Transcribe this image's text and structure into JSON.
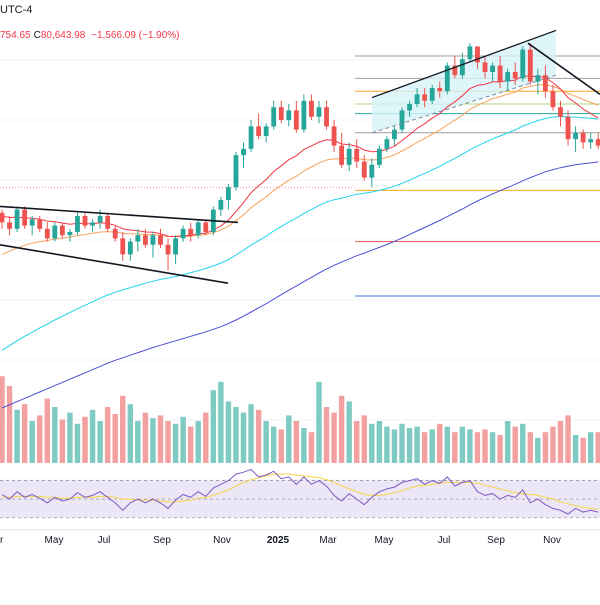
{
  "header": {
    "timezone": "UTC-4",
    "ohlc_low_fragment": "754.65",
    "close_label": "C",
    "close_value": "80,643.98",
    "change": "−1,566.09 (−1.90%)"
  },
  "colors": {
    "up": "#26a69a",
    "down": "#ef5350",
    "up_volume": "#7fcbc3",
    "down_volume": "#f3a0a0",
    "ema_fast": "#f23645",
    "ema_mid": "#f7a35c",
    "ema_slow": "#22d3ee",
    "ema_long": "#4b4fd6",
    "rsi": "#7e57c2",
    "rsi_ma": "#f5d547",
    "rsi_band": "#ece7f6",
    "trendline": "#131722",
    "grid": "#f0f3fa",
    "text": "#131722"
  },
  "chart_data": {
    "type": "candlestick",
    "interval": "weekly",
    "x_ticks": [
      "r",
      "May",
      "Jul",
      "Sep",
      "Nov",
      "2025",
      "Mar",
      "May",
      "Jul",
      "Sep",
      "Nov"
    ],
    "ohlc": [
      [
        71,
        72,
        66,
        68
      ],
      [
        68,
        70,
        64,
        66
      ],
      [
        66,
        73,
        65,
        72
      ],
      [
        72,
        73,
        66,
        67
      ],
      [
        67,
        70,
        64,
        69
      ],
      [
        69,
        70,
        65,
        66
      ],
      [
        66,
        68,
        62,
        63
      ],
      [
        63,
        68,
        62,
        67
      ],
      [
        67,
        68,
        63,
        64
      ],
      [
        64,
        66,
        62,
        65
      ],
      [
        65,
        71,
        64,
        70
      ],
      [
        70,
        71,
        66,
        67
      ],
      [
        67,
        69,
        65,
        68
      ],
      [
        68,
        72,
        66,
        70
      ],
      [
        70,
        71,
        65,
        66
      ],
      [
        66,
        67,
        62,
        63
      ],
      [
        63,
        65,
        56,
        58
      ],
      [
        58,
        63,
        56,
        62
      ],
      [
        62,
        66,
        59,
        64
      ],
      [
        64,
        66,
        60,
        61
      ],
      [
        61,
        65,
        57,
        64
      ],
      [
        64,
        66,
        60,
        61
      ],
      [
        61,
        63,
        53,
        58
      ],
      [
        58,
        64,
        55,
        63
      ],
      [
        63,
        67,
        62,
        66
      ],
      [
        66,
        68,
        62,
        64
      ],
      [
        64,
        69,
        63,
        68
      ],
      [
        68,
        69,
        64,
        65
      ],
      [
        65,
        73,
        64,
        72
      ],
      [
        72,
        76,
        70,
        75
      ],
      [
        75,
        80,
        72,
        79
      ],
      [
        79,
        90,
        78,
        89
      ],
      [
        89,
        93,
        85,
        91
      ],
      [
        91,
        100,
        90,
        98
      ],
      [
        98,
        102,
        94,
        95
      ],
      [
        95,
        99,
        93,
        98
      ],
      [
        98,
        106,
        97,
        104
      ],
      [
        104,
        106,
        99,
        100
      ],
      [
        100,
        105,
        98,
        103
      ],
      [
        103,
        106,
        96,
        97
      ],
      [
        97,
        108,
        96,
        106
      ],
      [
        106,
        108,
        100,
        101
      ],
      [
        101,
        106,
        99,
        104
      ],
      [
        104,
        106,
        97,
        98
      ],
      [
        98,
        100,
        90,
        92
      ],
      [
        92,
        96,
        85,
        86
      ],
      [
        86,
        93,
        84,
        91
      ],
      [
        91,
        94,
        85,
        87
      ],
      [
        87,
        89,
        81,
        82
      ],
      [
        82,
        88,
        79,
        86
      ],
      [
        86,
        92,
        85,
        91
      ],
      [
        91,
        95,
        90,
        94
      ],
      [
        94,
        98,
        92,
        97
      ],
      [
        97,
        104,
        96,
        103
      ],
      [
        103,
        106,
        101,
        105
      ],
      [
        105,
        110,
        104,
        108
      ],
      [
        108,
        110,
        104,
        106
      ],
      [
        106,
        111,
        105,
        110
      ],
      [
        110,
        112,
        107,
        109
      ],
      [
        109,
        118,
        108,
        117
      ],
      [
        117,
        120,
        113,
        114
      ],
      [
        114,
        121,
        113,
        119
      ],
      [
        119,
        124,
        118,
        123
      ],
      [
        123,
        123,
        116,
        118
      ],
      [
        118,
        120,
        113,
        115
      ],
      [
        115,
        118,
        112,
        117
      ],
      [
        117,
        120,
        110,
        112
      ],
      [
        112,
        116,
        109,
        115
      ],
      [
        115,
        118,
        111,
        113
      ],
      [
        113,
        123,
        112,
        122
      ],
      [
        122,
        124,
        111,
        112
      ],
      [
        112,
        116,
        108,
        114
      ],
      [
        114,
        117,
        107,
        109
      ],
      [
        109,
        111,
        103,
        104
      ],
      [
        104,
        106,
        98,
        101
      ],
      [
        101,
        103,
        92,
        94
      ],
      [
        94,
        98,
        90,
        96
      ],
      [
        96,
        97,
        91,
        93
      ],
      [
        93,
        96,
        91,
        94
      ],
      [
        94,
        96,
        91,
        92
      ]
    ],
    "volume": [
      62,
      55,
      38,
      42,
      30,
      34,
      46,
      40,
      31,
      36,
      28,
      33,
      38,
      30,
      40,
      35,
      48,
      42,
      30,
      36,
      32,
      34,
      30,
      28,
      33,
      26,
      30,
      36,
      52,
      58,
      44,
      40,
      36,
      42,
      38,
      30,
      26,
      24,
      34,
      30,
      25,
      22,
      58,
      40,
      36,
      48,
      44,
      30,
      34,
      28,
      30,
      26,
      24,
      28,
      25,
      26,
      22,
      24,
      28,
      26,
      22,
      26,
      24,
      22,
      24,
      22,
      20,
      30,
      26,
      28,
      22,
      18,
      22,
      26,
      30,
      34,
      20,
      18,
      22,
      22
    ],
    "ema_fast": [
      70,
      69.5,
      69.7,
      69.4,
      69.3,
      69.0,
      68.4,
      68.2,
      67.8,
      67.4,
      67.7,
      67.6,
      67.6,
      67.9,
      67.7,
      67.1,
      66.0,
      65.6,
      65.4,
      65.0,
      64.9,
      64.5,
      63.7,
      63.6,
      63.9,
      63.9,
      64.5,
      64.6,
      65.6,
      66.9,
      68.7,
      71.4,
      74.2,
      77.3,
      79.4,
      81.4,
      83.9,
      85.7,
      87.6,
      88.8,
      90.8,
      91.9,
      93.1,
      93.8,
      93.6,
      92.5,
      92.3,
      91.8,
      90.6,
      90.1,
      90.2,
      90.8,
      91.8,
      93.6,
      95.4,
      97.4,
      98.8,
      100.6,
      102.0,
      104.1,
      105.7,
      107.6,
      109.8,
      110.8,
      111.2,
      111.9,
      111.9,
      112.3,
      112.4,
      113.8,
      113.6,
      113.7,
      113.2,
      111.7,
      109.7,
      107.0,
      105.3,
      103.4,
      102.0,
      100.6
    ],
    "ema_mid": [
      58,
      59,
      60,
      60.8,
      61.5,
      62,
      62.3,
      62.8,
      63.1,
      63.4,
      63.9,
      64.2,
      64.6,
      65,
      65.1,
      65,
      64.6,
      64.4,
      64.4,
      64.2,
      64.2,
      64,
      63.6,
      63.5,
      63.6,
      63.7,
      64,
      64.2,
      64.8,
      65.6,
      66.8,
      68.5,
      70.4,
      72.6,
      74.3,
      76,
      78,
      79.6,
      81.2,
      82.4,
      84.1,
      85.3,
      86.6,
      87.5,
      87.9,
      87.8,
      88.1,
      88.1,
      87.6,
      87.5,
      87.7,
      88.3,
      89.1,
      90.3,
      91.6,
      93,
      94.2,
      95.6,
      96.8,
      98.5,
      99.9,
      101.5,
      103.3,
      104.6,
      105.6,
      106.7,
      107.3,
      108.1,
      108.7,
      110,
      110.5,
      111,
      111,
      110.5,
      109.6,
      108.3,
      107.4,
      106.4,
      105.5,
      104.6
    ],
    "ema_slow": [
      28,
      29.5,
      31,
      32.4,
      33.7,
      35,
      36.2,
      37.5,
      38.7,
      39.8,
      41,
      42.1,
      43.2,
      44.3,
      45.3,
      46.2,
      46.9,
      47.6,
      48.3,
      49,
      49.6,
      50.2,
      50.6,
      51.1,
      51.7,
      52.3,
      52.9,
      53.6,
      54.4,
      55.3,
      56.4,
      57.8,
      59.3,
      60.9,
      62.3,
      63.7,
      65.3,
      66.7,
      68.1,
      69.3,
      70.8,
      72,
      73.3,
      74.3,
      75.1,
      75.6,
      76.2,
      76.8,
      77.1,
      77.5,
      78,
      78.6,
      79.3,
      80.2,
      81.2,
      82.3,
      83.3,
      84.4,
      85.5,
      86.8,
      88,
      89.3,
      90.7,
      91.9,
      93,
      94.1,
      95,
      96,
      96.9,
      98.1,
      99,
      99.8,
      100.5,
      100.9,
      101.1,
      101,
      100.9,
      100.7,
      100.5,
      100.3
    ],
    "ema_long": [
      10,
      11,
      12,
      13,
      14,
      15,
      16,
      17,
      18,
      19,
      20,
      21,
      22,
      23,
      24,
      24.9,
      25.7,
      26.5,
      27.3,
      28.1,
      28.9,
      29.6,
      30.3,
      31,
      31.7,
      32.4,
      33.1,
      33.8,
      34.6,
      35.4,
      36.4,
      37.5,
      38.7,
      40,
      41.3,
      42.6,
      44,
      45.4,
      46.8,
      48.1,
      49.5,
      50.8,
      52.2,
      53.4,
      54.6,
      55.6,
      56.6,
      57.6,
      58.4,
      59.3,
      60.2,
      61.1,
      62.1,
      63.1,
      64.2,
      65.3,
      66.4,
      67.5,
      68.6,
      69.8,
      71,
      72.2,
      73.5,
      74.7,
      75.8,
      76.9,
      77.9,
      78.9,
      79.9,
      81,
      82,
      82.9,
      83.8,
      84.5,
      85.1,
      85.6,
      86,
      86.3,
      86.6,
      86.9
    ],
    "rsi": [
      55,
      50,
      58,
      52,
      55,
      51,
      46,
      52,
      48,
      50,
      57,
      52,
      54,
      58,
      52,
      46,
      38,
      46,
      50,
      46,
      50,
      46,
      40,
      49,
      55,
      52,
      58,
      53,
      62,
      66,
      70,
      77,
      79,
      82,
      74,
      76,
      80,
      72,
      74,
      66,
      74,
      66,
      70,
      64,
      54,
      48,
      56,
      50,
      44,
      52,
      58,
      61,
      63,
      68,
      70,
      72,
      66,
      70,
      67,
      74,
      64,
      68,
      70,
      58,
      54,
      56,
      50,
      54,
      52,
      60,
      46,
      50,
      44,
      40,
      38,
      34,
      40,
      36,
      38,
      36
    ],
    "rsi_ma": [
      52,
      52,
      53,
      53,
      53,
      53,
      52,
      52,
      51,
      51,
      52,
      52,
      52,
      53,
      53,
      52,
      50,
      50,
      49,
      49,
      49,
      48,
      47,
      47,
      48,
      49,
      51,
      52,
      54,
      57,
      60,
      64,
      68,
      71,
      73,
      75,
      77,
      77,
      77,
      76,
      75,
      74,
      73,
      71,
      68,
      64,
      61,
      58,
      55,
      54,
      54,
      55,
      57,
      59,
      62,
      64,
      65,
      66,
      67,
      68,
      68,
      68,
      68,
      67,
      65,
      63,
      61,
      59,
      57,
      56,
      55,
      54,
      52,
      50,
      47,
      45,
      43,
      41,
      40,
      39
    ],
    "horizontal_levels": [
      {
        "value": 120,
        "color": "#9e9e9e"
      },
      {
        "value": 113,
        "color": "#9e9e9e"
      },
      {
        "value": 109,
        "color": "#ffa726"
      },
      {
        "value": 105,
        "color": "#aed581"
      },
      {
        "value": 102,
        "color": "#26a69a"
      },
      {
        "value": 96,
        "color": "#9e9e9e"
      },
      {
        "value": 78,
        "color": "#f9a825"
      },
      {
        "value": 62,
        "color": "#ef5350"
      },
      {
        "value": 45,
        "color": "#3f7bd8"
      }
    ]
  }
}
